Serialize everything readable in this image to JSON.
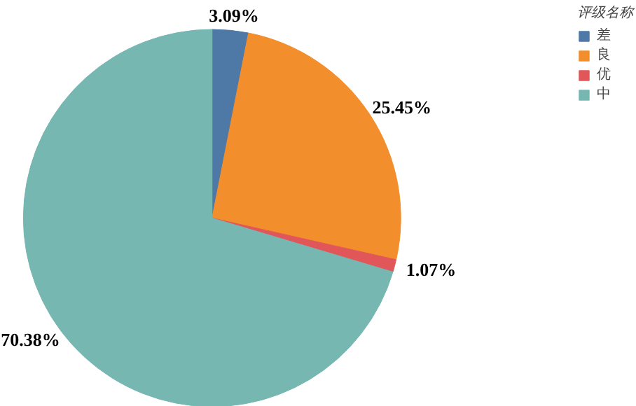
{
  "chart_data": {
    "type": "pie",
    "legend_title": "评级名称",
    "legend": "top right",
    "value_labels": [
      "3.09%",
      "25.45%",
      "1.07%",
      "70.38%"
    ],
    "categories": [
      "差",
      "良",
      "优",
      "中"
    ],
    "values": [
      3.09,
      25.45,
      1.07,
      70.38
    ],
    "colors": [
      "#4e79a7",
      "#f28e2b",
      "#e15759",
      "#76b7b2"
    ]
  }
}
